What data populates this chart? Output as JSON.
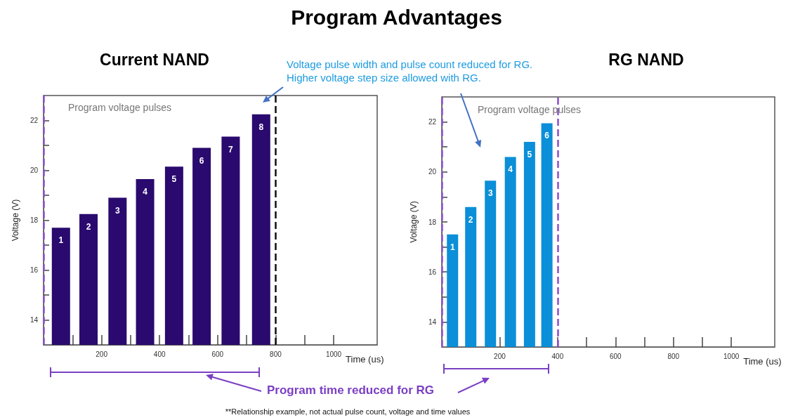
{
  "chart_data": [
    {
      "type": "bar",
      "title": "Program Advantages",
      "subtitle": "Current NAND",
      "xlabel": "Time (us)",
      "ylabel": "Voltage (V)",
      "color": "#2a0a6e",
      "x": [
        60,
        155,
        255,
        350,
        450,
        545,
        645,
        750
      ],
      "values": [
        17.7,
        18.25,
        18.9,
        19.65,
        20.15,
        20.9,
        21.35,
        22.25
      ],
      "xlim": [
        0,
        1150
      ],
      "xticks": [
        {
          "value": 100,
          "label": null
        },
        200,
        {
          "value": 300,
          "label": null
        },
        400,
        {
          "value": 500,
          "label": null
        },
        600,
        {
          "value": 700,
          "label": null
        },
        800,
        {
          "value": 900,
          "label": null
        },
        1000
      ],
      "ylim": [
        13,
        23
      ],
      "yticks": [
        14,
        {
          "value": 15,
          "label": null
        },
        16,
        {
          "value": 17,
          "label": null
        },
        18,
        {
          "value": 19,
          "label": null
        },
        20,
        {
          "value": 21,
          "label": null
        },
        22
      ],
      "ref_lines": [
        {
          "axis": "x",
          "value": 0,
          "color": "#8a4fd0",
          "line_style": "dashed"
        },
        {
          "axis": "x",
          "value": 800,
          "color": "#111111",
          "line_style": "dashed"
        }
      ],
      "annotations": [
        "Program voltage pulses",
        "Voltage pulse width and pulse count reduced for RG. Higher voltage step size allowed with RG.",
        "Program time reduced for RG",
        "**Relationship example, not actual pulse count, voltage and time values",
        {
          "text": "1",
          "x": 60,
          "y": 17.7
        },
        {
          "text": "2",
          "x": 155,
          "y": 18.25
        },
        {
          "text": "3",
          "x": 255,
          "y": 18.9
        },
        {
          "text": "4",
          "x": 350,
          "y": 19.65
        },
        {
          "text": "5",
          "x": 450,
          "y": 20.15
        },
        {
          "text": "6",
          "x": 545,
          "y": 20.9
        },
        {
          "text": "7",
          "x": 645,
          "y": 21.35
        },
        {
          "text": "8",
          "x": 750,
          "y": 22.25
        }
      ]
    },
    {
      "type": "bar",
      "subtitle": "RG NAND",
      "xlabel": "Time (us)",
      "ylabel": "Voltage (V)",
      "color": "#0a8fd8",
      "x": [
        37,
        100,
        168,
        237,
        303,
        363
      ],
      "values": [
        17.5,
        18.6,
        19.65,
        20.6,
        21.2,
        21.95
      ],
      "xlim": [
        0,
        1150
      ],
      "xticks": [
        {
          "value": 100,
          "label": null
        },
        200,
        {
          "value": 300,
          "label": null
        },
        400,
        {
          "value": 500,
          "label": null
        },
        600,
        {
          "value": 700,
          "label": null
        },
        800,
        {
          "value": 900,
          "label": null
        },
        1000
      ],
      "ylim": [
        13,
        23
      ],
      "yticks": [
        14,
        {
          "value": 15,
          "label": null
        },
        16,
        {
          "value": 17,
          "label": null
        },
        18,
        {
          "value": 19,
          "label": null
        },
        20,
        {
          "value": 21,
          "label": null
        },
        22
      ],
      "ref_lines": [
        {
          "axis": "x",
          "value": 0,
          "color": "#8a4fd0",
          "line_style": "dashed"
        },
        {
          "axis": "x",
          "value": 400,
          "color": "#8a4fd0",
          "line_style": "dashed"
        }
      ],
      "annotations": [
        "Program voltage pulses",
        {
          "text": "1",
          "x": 37,
          "y": 17.5
        },
        {
          "text": "2",
          "x": 100,
          "y": 18.6
        },
        {
          "text": "3",
          "x": 168,
          "y": 19.65
        },
        {
          "text": "4",
          "x": 237,
          "y": 20.6
        },
        {
          "text": "5",
          "x": 303,
          "y": 21.2
        },
        {
          "text": "6",
          "x": 363,
          "y": 21.95
        }
      ]
    }
  ]
}
